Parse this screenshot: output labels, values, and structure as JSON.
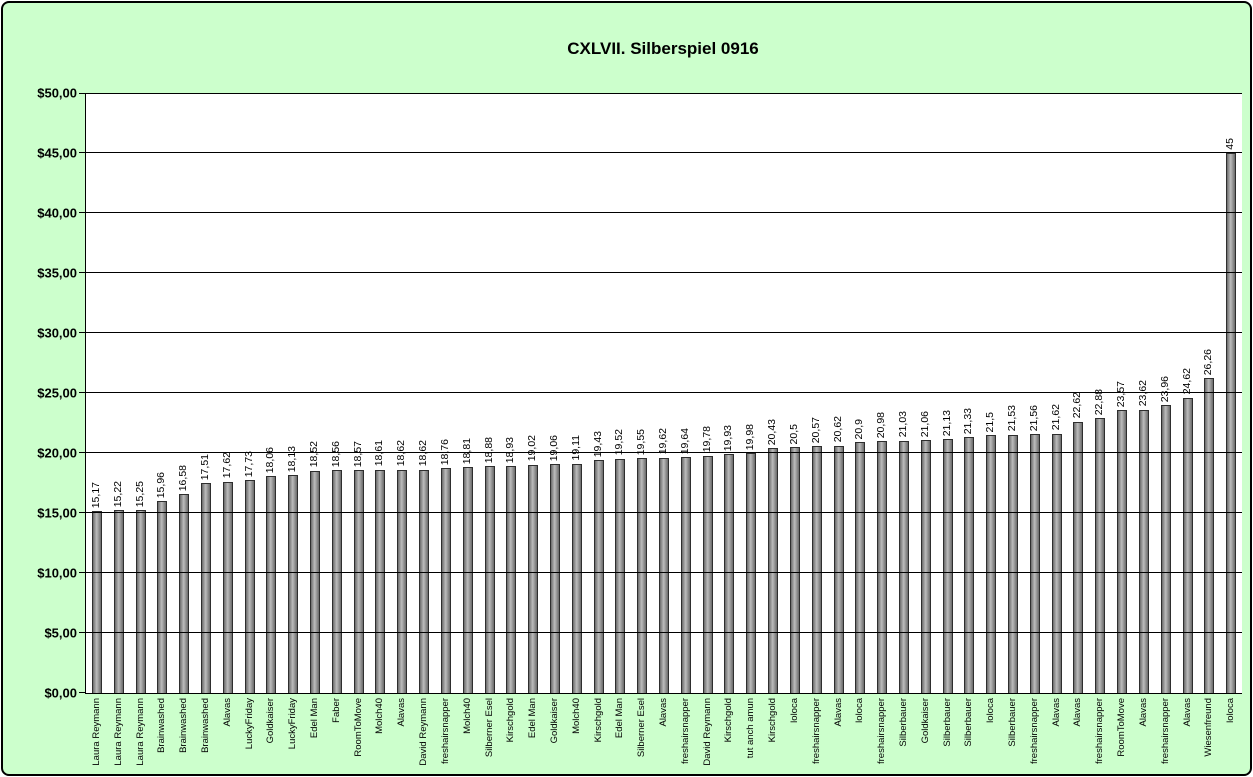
{
  "chart_data": {
    "type": "bar",
    "title": "CXLVII. Silberspiel 0916",
    "xlabel": "",
    "ylabel": "",
    "ylim": [
      0,
      50
    ],
    "grid": true,
    "legend": "none",
    "background_color": "#ccffcc",
    "plot_background_color": "#ffffff",
    "bar_color": "#9a9a9a",
    "bar_border_color": "#2e2e2e",
    "y_ticks": [
      {
        "label": "$0,00",
        "value": 0
      },
      {
        "label": "$5,00",
        "value": 5
      },
      {
        "label": "$10,00",
        "value": 10
      },
      {
        "label": "$15,00",
        "value": 15
      },
      {
        "label": "$20,00",
        "value": 20
      },
      {
        "label": "$25,00",
        "value": 25
      },
      {
        "label": "$30,00",
        "value": 30
      },
      {
        "label": "$35,00",
        "value": 35
      },
      {
        "label": "$40,00",
        "value": 40
      },
      {
        "label": "$45,00",
        "value": 45
      },
      {
        "label": "$50,00",
        "value": 50
      }
    ],
    "categories": [
      "Laura Reymann",
      "Laura Reymann",
      "Laura Reymann",
      "Brainwashed",
      "Brainwashed",
      "Brainwashed",
      "Alavas",
      "LuckyFriday",
      "Goldkaiser",
      "LuckyFriday",
      "Edel Man",
      "Faber",
      "RoomToMove",
      "Molch40",
      "Alavas",
      "David Reymann",
      "freshairsnapper",
      "Molch40",
      "Silberner Esel",
      "Kirschgold",
      "Edel Man",
      "Goldkaiser",
      "Molch40",
      "Kirschgold",
      "Edel Man",
      "Silberner Esel",
      "Alavas",
      "freshairsnapper",
      "David Reymann",
      "Kirschgold",
      "tut anch amun",
      "Kirschgold",
      "loloca",
      "freshairsnapper",
      "Alavas",
      "loloca",
      "freshairsnapper",
      "Silberbauer",
      "Goldkaiser",
      "Silberbauer",
      "Silberbauer",
      "loloca",
      "Silberbauer",
      "freshairsnapper",
      "Alavas",
      "Alavas",
      "freshairsnapper",
      "RoomToMove",
      "Alavas",
      "freshairsnapper",
      "Alavas",
      "Wiesenfreund",
      "loloca"
    ],
    "values": [
      15.17,
      15.22,
      15.25,
      15.96,
      16.58,
      17.51,
      17.62,
      17.73,
      18.06,
      18.13,
      18.52,
      18.56,
      18.57,
      18.61,
      18.62,
      18.62,
      18.76,
      18.81,
      18.88,
      18.93,
      19.02,
      19.06,
      19.11,
      19.43,
      19.52,
      19.55,
      19.62,
      19.64,
      19.78,
      19.93,
      19.98,
      20.43,
      20.5,
      20.57,
      20.62,
      20.9,
      20.98,
      21.03,
      21.06,
      21.13,
      21.33,
      21.5,
      21.53,
      21.56,
      21.62,
      22.62,
      22.88,
      23.57,
      23.62,
      23.96,
      24.62,
      26.26,
      45
    ],
    "value_labels": [
      "15,17",
      "15,22",
      "15,25",
      "15,96",
      "16,58",
      "17,51",
      "17,62",
      "17,73",
      "18,06",
      "18,13",
      "18,52",
      "18,56",
      "18,57",
      "18,61",
      "18,62",
      "18,62",
      "18,76",
      "18,81",
      "18,88",
      "18,93",
      "19,02",
      "19,06",
      "19,11",
      "19,43",
      "19,52",
      "19,55",
      "19,62",
      "19,64",
      "19,78",
      "19,93",
      "19,98",
      "20,43",
      "20,5",
      "20,57",
      "20,62",
      "20,9",
      "20,98",
      "21,03",
      "21,06",
      "21,13",
      "21,33",
      "21,5",
      "21,53",
      "21,56",
      "21,62",
      "22,62",
      "22,88",
      "23,57",
      "23,62",
      "23,96",
      "24,62",
      "26,26",
      "45"
    ]
  }
}
